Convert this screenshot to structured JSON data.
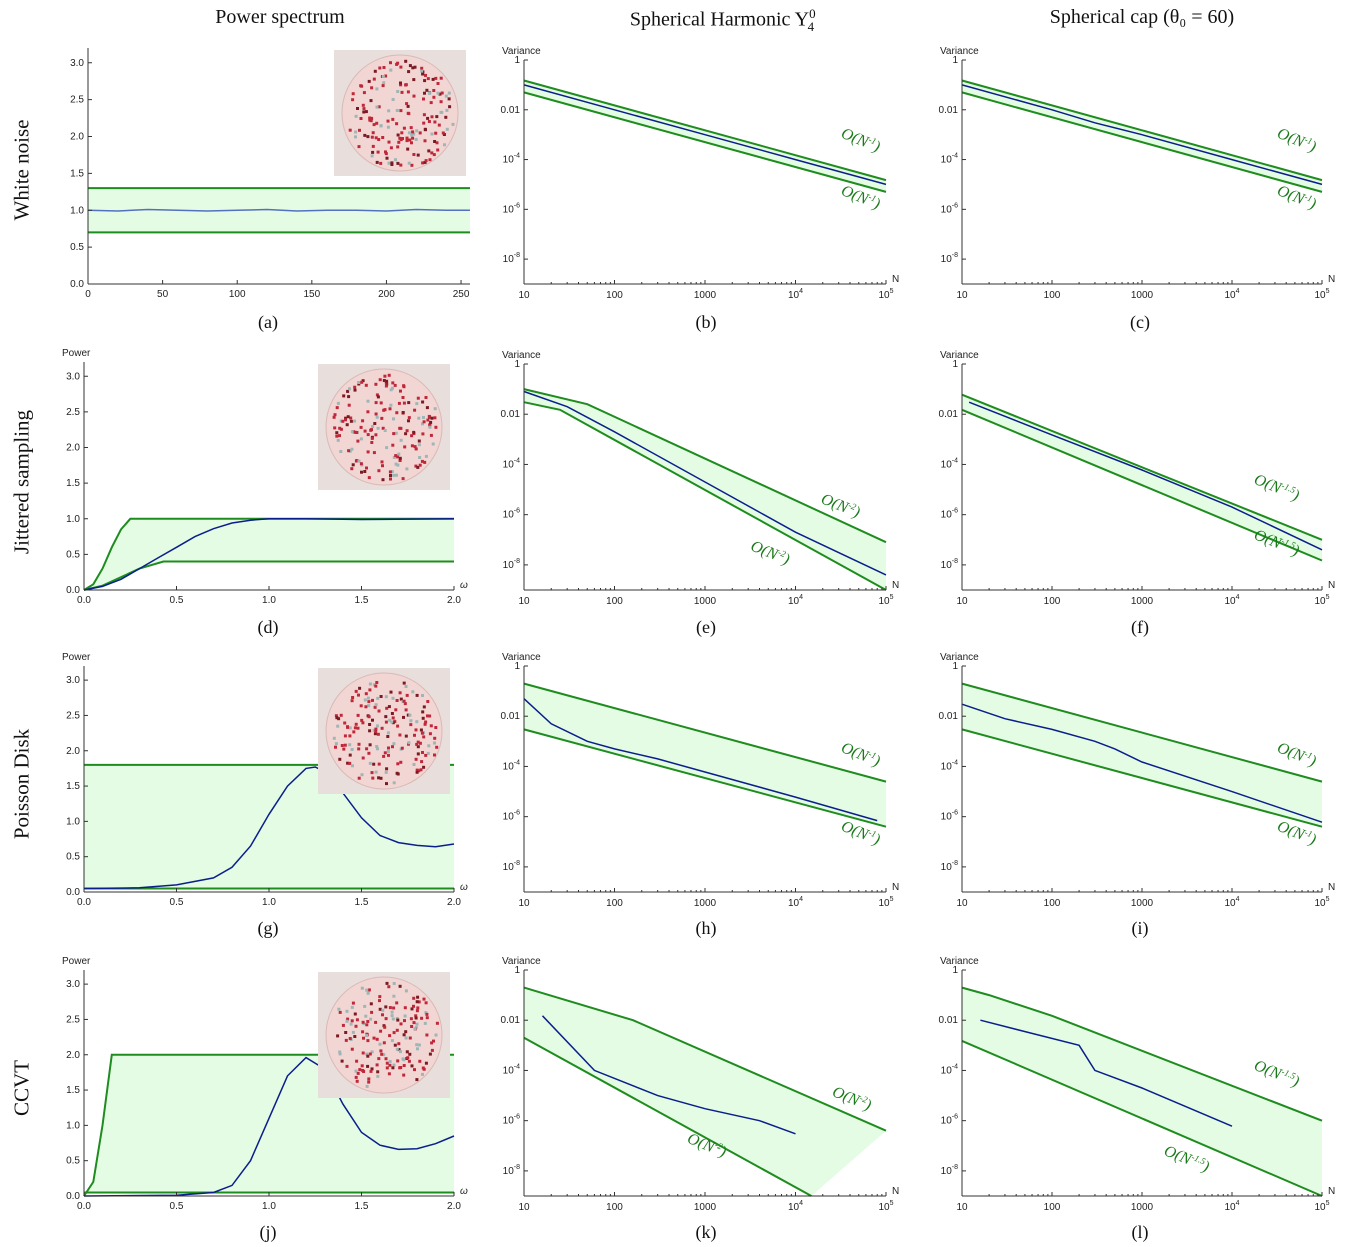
{
  "column_titles": [
    "Power spectrum",
    "Spherical Harmonic Y",
    "Spherical cap (θ₀ = 60)"
  ],
  "column_title_parts": {
    "harmonic_sub": "4",
    "harmonic_sup": "0"
  },
  "row_titles": [
    "White noise",
    "Jittered sampling",
    "Poisson Disk",
    "CCVT"
  ],
  "captions": [
    "(a)",
    "(b)",
    "(c)",
    "(d)",
    "(e)",
    "(f)",
    "(g)",
    "(h)",
    "(i)",
    "(j)",
    "(k)",
    "(l)"
  ],
  "colors": {
    "band": "#1e8c1e",
    "fill": "#e4fbe4",
    "curve_blue": "#0a1f8c",
    "curve_light": "#5470c0",
    "axis": "#333333"
  },
  "chart_data": [
    {
      "id": "a",
      "type": "line",
      "ylabel": "",
      "xlabel": "",
      "xlim": [
        0,
        256
      ],
      "ylim": [
        0,
        3.2
      ],
      "xticks": [
        0,
        50,
        100,
        150,
        200,
        250
      ],
      "yticks": [
        0.0,
        0.5,
        1.0,
        1.5,
        2.0,
        2.5,
        3.0
      ],
      "band_upper": [
        [
          0,
          1.3
        ],
        [
          256,
          1.3
        ]
      ],
      "band_lower": [
        [
          0,
          0.7
        ],
        [
          256,
          0.7
        ]
      ],
      "series": [
        {
          "style": "light",
          "x": [
            0,
            20,
            40,
            60,
            80,
            100,
            120,
            140,
            160,
            180,
            200,
            220,
            240,
            256
          ],
          "y": [
            1.0,
            0.99,
            1.01,
            1.0,
            0.99,
            1.0,
            1.01,
            0.99,
            1.0,
            1.0,
            0.99,
            1.01,
            1.0,
            1.0
          ]
        }
      ],
      "inset": true
    },
    {
      "id": "b",
      "type": "line",
      "log": true,
      "ylabel": "Variance",
      "xlabel": "N",
      "xlim": [
        10,
        100000
      ],
      "ylim": [
        1e-09,
        1
      ],
      "band_upper": [
        [
          10,
          0.15
        ],
        [
          100000,
          1.5e-05
        ]
      ],
      "band_lower": [
        [
          10,
          0.05
        ],
        [
          100000,
          5e-06
        ]
      ],
      "series": [
        {
          "style": "dark",
          "x": [
            10,
            100,
            1000,
            10000,
            100000
          ],
          "y": [
            0.1,
            0.01,
            0.001,
            0.0001,
            1e-05
          ]
        }
      ],
      "labels": [
        {
          "text": "O(N",
          "exp": "-1",
          "at": [
            50000,
            0.0004
          ]
        },
        {
          "text": "O(N",
          "exp": "-1",
          "at": [
            50000,
            2e-06
          ]
        }
      ]
    },
    {
      "id": "c",
      "type": "line",
      "log": true,
      "ylabel": "Variance",
      "xlabel": "N",
      "xlim": [
        10,
        100000
      ],
      "ylim": [
        1e-09,
        1
      ],
      "band_upper": [
        [
          10,
          0.15
        ],
        [
          100000,
          1.5e-05
        ]
      ],
      "band_lower": [
        [
          10,
          0.05
        ],
        [
          100000,
          5e-06
        ]
      ],
      "series": [
        {
          "style": "dark",
          "x": [
            10,
            100,
            300,
            1000,
            10000,
            100000
          ],
          "y": [
            0.1,
            0.01,
            0.003,
            0.001,
            0.0001,
            1e-05
          ]
        }
      ],
      "labels": [
        {
          "text": "O(N",
          "exp": "-1",
          "at": [
            50000,
            0.0004
          ]
        },
        {
          "text": "O(N",
          "exp": "-1",
          "at": [
            50000,
            2e-06
          ]
        }
      ]
    },
    {
      "id": "d",
      "type": "line",
      "ylabel": "Power",
      "xlabel": "ω",
      "xlim": [
        0,
        2
      ],
      "ylim": [
        0,
        3.2
      ],
      "xticks": [
        0.0,
        0.5,
        1.0,
        1.5,
        2.0
      ],
      "yticks": [
        0.0,
        0.5,
        1.0,
        1.5,
        2.0,
        2.5,
        3.0
      ],
      "band_upper": [
        [
          0,
          0
        ],
        [
          0.05,
          0.08
        ],
        [
          0.1,
          0.3
        ],
        [
          0.15,
          0.6
        ],
        [
          0.2,
          0.85
        ],
        [
          0.25,
          1.0
        ],
        [
          2,
          1.0
        ]
      ],
      "band_lower": [
        [
          0,
          0
        ],
        [
          0.1,
          0.06
        ],
        [
          0.2,
          0.18
        ],
        [
          0.3,
          0.3
        ],
        [
          0.43,
          0.4
        ],
        [
          2,
          0.4
        ]
      ],
      "series": [
        {
          "style": "dark",
          "x": [
            0,
            0.1,
            0.2,
            0.3,
            0.4,
            0.5,
            0.6,
            0.7,
            0.8,
            0.9,
            1.0,
            1.2,
            1.5,
            2.0
          ],
          "y": [
            0,
            0.05,
            0.15,
            0.3,
            0.45,
            0.6,
            0.75,
            0.86,
            0.94,
            0.98,
            1.0,
            1.0,
            0.99,
            1.0
          ]
        }
      ],
      "inset": true
    },
    {
      "id": "e",
      "type": "line",
      "log": true,
      "ylabel": "Variance",
      "xlabel": "N",
      "xlim": [
        10,
        100000
      ],
      "ylim": [
        1e-09,
        1
      ],
      "band_upper": [
        [
          10,
          0.1
        ],
        [
          50,
          0.025
        ],
        [
          100000,
          8e-08
        ]
      ],
      "band_lower": [
        [
          10,
          0.03
        ],
        [
          25,
          0.015
        ],
        [
          100000,
          1e-09
        ]
      ],
      "series": [
        {
          "style": "dark",
          "x": [
            10,
            30,
            100,
            1000,
            10000,
            100000
          ],
          "y": [
            0.08,
            0.02,
            0.002,
            2e-05,
            2e-07,
            4e-09
          ]
        }
      ],
      "labels": [
        {
          "text": "O(N",
          "exp": "-2",
          "at": [
            30000,
            1.5e-06
          ]
        },
        {
          "text": "O(N",
          "exp": "-2",
          "at": [
            5000,
            2e-08
          ]
        }
      ]
    },
    {
      "id": "f",
      "type": "line",
      "log": true,
      "ylabel": "Variance",
      "xlabel": "N",
      "xlim": [
        10,
        100000
      ],
      "ylim": [
        1e-09,
        1
      ],
      "band_upper": [
        [
          10,
          0.06
        ],
        [
          100000,
          1e-07
        ]
      ],
      "band_lower": [
        [
          10,
          0.015
        ],
        [
          100000,
          1.5e-08
        ]
      ],
      "series": [
        {
          "style": "dark",
          "x": [
            12,
            100,
            1000,
            10000,
            100000
          ],
          "y": [
            0.03,
            0.0015,
            6e-05,
            2e-06,
            4e-08
          ]
        }
      ],
      "labels": [
        {
          "text": "O(N",
          "exp": "-1.5",
          "at": [
            30000,
            8e-06
          ]
        },
        {
          "text": "O(N",
          "exp": "-1.5",
          "at": [
            30000,
            5e-08
          ]
        }
      ]
    },
    {
      "id": "g",
      "type": "line",
      "ylabel": "Power",
      "xlabel": "ω",
      "xlim": [
        0,
        2
      ],
      "ylim": [
        0,
        3.2
      ],
      "xticks": [
        0.0,
        0.5,
        1.0,
        1.5,
        2.0
      ],
      "yticks": [
        0.0,
        0.5,
        1.0,
        1.5,
        2.0,
        2.5,
        3.0
      ],
      "band_upper": [
        [
          0,
          1.8
        ],
        [
          2,
          1.8
        ]
      ],
      "band_lower": [
        [
          0,
          0.05
        ],
        [
          2,
          0.05
        ]
      ],
      "series": [
        {
          "style": "dark",
          "x": [
            0,
            0.3,
            0.5,
            0.7,
            0.8,
            0.9,
            1.0,
            1.1,
            1.2,
            1.25,
            1.3,
            1.4,
            1.5,
            1.6,
            1.7,
            1.8,
            1.9,
            2.0
          ],
          "y": [
            0.05,
            0.06,
            0.1,
            0.2,
            0.35,
            0.65,
            1.1,
            1.5,
            1.75,
            1.77,
            1.7,
            1.4,
            1.05,
            0.8,
            0.7,
            0.66,
            0.64,
            0.68
          ]
        }
      ],
      "inset": true
    },
    {
      "id": "h",
      "type": "line",
      "log": true,
      "ylabel": "Variance",
      "xlabel": "N",
      "xlim": [
        10,
        100000
      ],
      "ylim": [
        1e-09,
        1
      ],
      "band_upper": [
        [
          10,
          0.2
        ],
        [
          100000,
          2.5e-05
        ]
      ],
      "band_lower": [
        [
          10,
          0.003
        ],
        [
          100000,
          4e-07
        ]
      ],
      "series": [
        {
          "style": "dark",
          "x": [
            10,
            20,
            50,
            100,
            300,
            1000,
            10000,
            80000
          ],
          "y": [
            0.05,
            0.005,
            0.001,
            0.0005,
            0.0002,
            6e-05,
            6e-06,
            7e-07
          ]
        }
      ],
      "labels": [
        {
          "text": "O(N",
          "exp": "-1",
          "at": [
            50000,
            0.0002
          ]
        },
        {
          "text": "O(N",
          "exp": "-1",
          "at": [
            50000,
            1.5e-07
          ]
        }
      ]
    },
    {
      "id": "i",
      "type": "line",
      "log": true,
      "ylabel": "Variance",
      "xlabel": "N",
      "xlim": [
        10,
        100000
      ],
      "ylim": [
        1e-09,
        1
      ],
      "band_upper": [
        [
          10,
          0.2
        ],
        [
          100000,
          2.5e-05
        ]
      ],
      "band_lower": [
        [
          10,
          0.003
        ],
        [
          100000,
          4e-07
        ]
      ],
      "series": [
        {
          "style": "dark",
          "x": [
            10,
            30,
            100,
            300,
            500,
            1000,
            10000,
            100000
          ],
          "y": [
            0.03,
            0.008,
            0.003,
            0.001,
            0.0005,
            0.00015,
            1e-05,
            6e-07
          ]
        }
      ],
      "labels": [
        {
          "text": "O(N",
          "exp": "-1",
          "at": [
            50000,
            0.0002
          ]
        },
        {
          "text": "O(N",
          "exp": "-1",
          "at": [
            50000,
            1.5e-07
          ]
        }
      ]
    },
    {
      "id": "j",
      "type": "line",
      "ylabel": "Power",
      "xlabel": "ω",
      "xlim": [
        0,
        2
      ],
      "ylim": [
        0,
        3.2
      ],
      "xticks": [
        0.0,
        0.5,
        1.0,
        1.5,
        2.0
      ],
      "yticks": [
        0.0,
        0.5,
        1.0,
        1.5,
        2.0,
        2.5,
        3.0
      ],
      "band_upper": [
        [
          0,
          0
        ],
        [
          0.05,
          0.2
        ],
        [
          0.1,
          1.0
        ],
        [
          0.15,
          2.0
        ],
        [
          2,
          2.0
        ]
      ],
      "band_lower": [
        [
          0,
          0.05
        ],
        [
          2,
          0.05
        ]
      ],
      "series": [
        {
          "style": "dark",
          "x": [
            0,
            0.5,
            0.7,
            0.8,
            0.9,
            1.0,
            1.1,
            1.2,
            1.3,
            1.4,
            1.5,
            1.6,
            1.7,
            1.8,
            1.9,
            2.0
          ],
          "y": [
            0,
            0.01,
            0.05,
            0.15,
            0.5,
            1.1,
            1.7,
            1.96,
            1.8,
            1.3,
            0.9,
            0.72,
            0.66,
            0.67,
            0.74,
            0.85
          ]
        }
      ],
      "inset": true
    },
    {
      "id": "k",
      "type": "line",
      "log": true,
      "ylabel": "Variance",
      "xlabel": "N",
      "xlim": [
        10,
        100000
      ],
      "ylim": [
        1e-09,
        1
      ],
      "band_upper": [
        [
          10,
          0.2
        ],
        [
          160,
          0.01
        ],
        [
          100000,
          4e-07
        ]
      ],
      "band_lower": [
        [
          10,
          0.002
        ],
        [
          15000,
          1e-09
        ]
      ],
      "series": [
        {
          "style": "dark",
          "x": [
            16,
            60,
            300,
            1000,
            4000,
            10000
          ],
          "y": [
            0.015,
            0.0001,
            1e-05,
            3e-06,
            1e-06,
            3e-07
          ]
        }
      ],
      "labels": [
        {
          "text": "O(N",
          "exp": "-2",
          "at": [
            40000,
            5e-06
          ]
        },
        {
          "text": "O(N",
          "exp": "-2",
          "at": [
            1000,
            7e-08
          ]
        }
      ]
    },
    {
      "id": "l",
      "type": "line",
      "log": true,
      "ylabel": "Variance",
      "xlabel": "N",
      "xlim": [
        10,
        100000
      ],
      "ylim": [
        1e-09,
        1
      ],
      "band_upper": [
        [
          10,
          0.2
        ],
        [
          20,
          0.1
        ],
        [
          100,
          0.015
        ],
        [
          100000,
          1e-06
        ]
      ],
      "band_lower": [
        [
          10,
          0.0015
        ],
        [
          100000,
          1e-09
        ]
      ],
      "series": [
        {
          "style": "dark",
          "x": [
            16,
            60,
            200,
            300,
            1000,
            10000
          ],
          "y": [
            0.01,
            0.003,
            0.001,
            0.0001,
            2e-05,
            6e-07
          ]
        }
      ],
      "labels": [
        {
          "text": "O(N",
          "exp": "-1.5",
          "at": [
            30000,
            5e-05
          ]
        },
        {
          "text": "O(N",
          "exp": "-1.5",
          "at": [
            3000,
            2e-08
          ]
        }
      ]
    }
  ]
}
